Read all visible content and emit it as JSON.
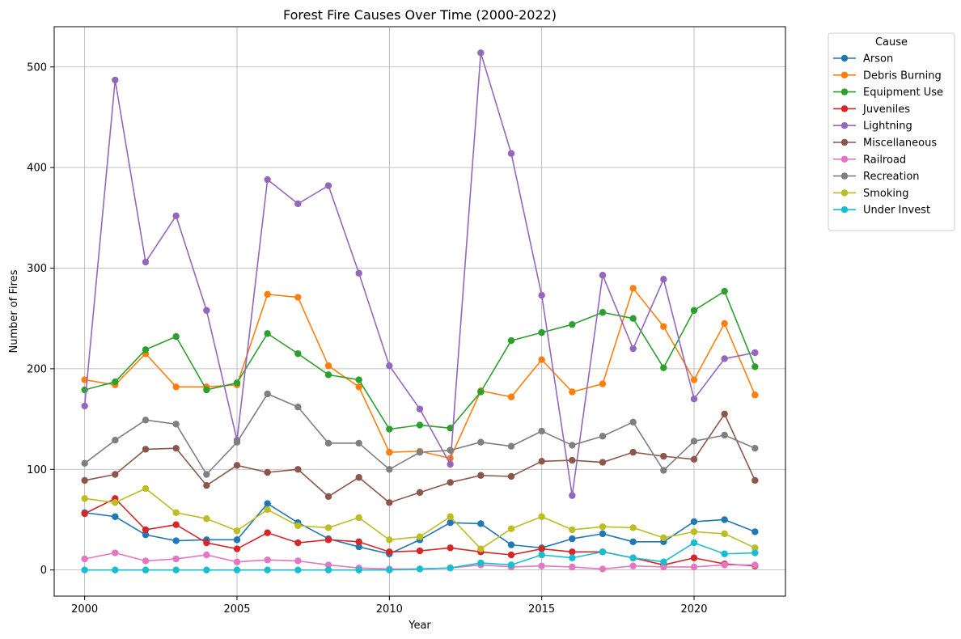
{
  "chart_data": {
    "type": "line",
    "title": "Forest Fire Causes Over Time (2000-2022)",
    "xlabel": "Year",
    "ylabel": "Number of Fires",
    "xlim": [
      1999.0,
      2023.0
    ],
    "ylim": [
      -26,
      540
    ],
    "x_ticks": [
      2000,
      2005,
      2010,
      2015,
      2020
    ],
    "y_ticks": [
      0,
      100,
      200,
      300,
      400,
      500
    ],
    "grid": true,
    "legend": {
      "title": "Cause",
      "placement": "outside-top-right"
    },
    "x": [
      2000,
      2001,
      2002,
      2003,
      2004,
      2005,
      2006,
      2007,
      2008,
      2009,
      2010,
      2011,
      2012,
      2013,
      2014,
      2015,
      2016,
      2017,
      2018,
      2019,
      2020,
      2021,
      2022
    ],
    "series": [
      {
        "name": "Arson",
        "color": "#1f77b4",
        "values": [
          57,
          53,
          35,
          29,
          30,
          30,
          66,
          47,
          31,
          23,
          16,
          30,
          47,
          46,
          25,
          22,
          31,
          36,
          28,
          28,
          48,
          50,
          38
        ]
      },
      {
        "name": "Debris Burning",
        "color": "#ff7f0e",
        "values": [
          189,
          184,
          215,
          182,
          182,
          184,
          274,
          271,
          203,
          182,
          117,
          118,
          111,
          178,
          172,
          209,
          177,
          185,
          280,
          242,
          189,
          245,
          174
        ]
      },
      {
        "name": "Equipment Use",
        "color": "#2ca02c",
        "values": [
          179,
          187,
          219,
          232,
          179,
          186,
          235,
          215,
          194,
          189,
          140,
          144,
          141,
          177,
          228,
          236,
          244,
          256,
          250,
          201,
          258,
          277,
          202
        ]
      },
      {
        "name": "Juveniles",
        "color": "#d62728",
        "values": [
          56,
          71,
          40,
          45,
          27,
          21,
          37,
          27,
          30,
          28,
          18,
          19,
          22,
          18,
          15,
          21,
          18,
          18,
          12,
          5,
          12,
          6,
          4
        ]
      },
      {
        "name": "Lightning",
        "color": "#9467bd",
        "values": [
          163,
          487,
          306,
          352,
          258,
          129,
          388,
          364,
          382,
          295,
          203,
          160,
          105,
          514,
          414,
          273,
          74,
          293,
          220,
          289,
          170,
          210,
          216
        ]
      },
      {
        "name": "Miscellaneous",
        "color": "#8c564b",
        "values": [
          89,
          95,
          120,
          121,
          84,
          104,
          97,
          100,
          73,
          92,
          67,
          77,
          87,
          94,
          93,
          108,
          109,
          107,
          117,
          113,
          110,
          155,
          89
        ]
      },
      {
        "name": "Railroad",
        "color": "#e377c2",
        "values": [
          11,
          17,
          9,
          11,
          15,
          8,
          10,
          9,
          5,
          2,
          1,
          1,
          2,
          5,
          3,
          4,
          3,
          1,
          4,
          3,
          3,
          5,
          5
        ]
      },
      {
        "name": "Recreation",
        "color": "#7f7f7f",
        "values": [
          106,
          129,
          149,
          145,
          95,
          127,
          175,
          162,
          126,
          126,
          100,
          117,
          119,
          127,
          123,
          138,
          124,
          133,
          147,
          99,
          128,
          134,
          121
        ]
      },
      {
        "name": "Smoking",
        "color": "#bcbd22",
        "values": [
          71,
          67,
          81,
          57,
          51,
          39,
          60,
          44,
          42,
          52,
          30,
          33,
          53,
          21,
          41,
          53,
          40,
          43,
          42,
          32,
          38,
          36,
          22
        ]
      },
      {
        "name": "Under Invest",
        "color": "#17becf",
        "values": [
          0,
          0,
          0,
          0,
          0,
          0,
          0,
          0,
          0,
          0,
          0,
          1,
          2,
          7,
          5,
          15,
          12,
          18,
          12,
          8,
          27,
          16,
          17
        ]
      }
    ]
  }
}
